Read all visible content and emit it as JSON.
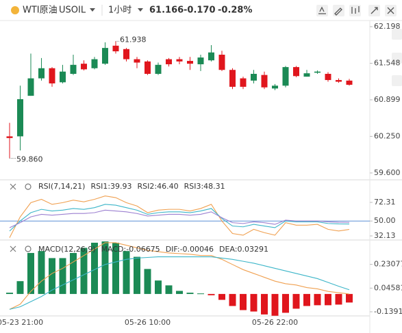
{
  "header": {
    "symbol": "WTI原油",
    "code": "USOIL",
    "interval": "1小时",
    "price": "61.166",
    "change": "-0.170",
    "change_pct": "-0.28%"
  },
  "chart_data": [
    {
      "type": "candlestick",
      "categories": [
        null,
        "05-23 21:00",
        null,
        null,
        null,
        null,
        null,
        null,
        null,
        null,
        null,
        null,
        null,
        "05-26 10:00",
        null,
        null,
        null,
        null,
        null,
        null,
        null,
        null,
        null,
        null,
        null,
        "05-26 22:00",
        null,
        null,
        null,
        null,
        null,
        null,
        null
      ],
      "open": [
        60.25,
        60.25,
        60.97,
        61.28,
        61.46,
        61.21,
        61.36,
        61.54,
        61.46,
        61.54,
        61.86,
        61.8,
        61.62,
        61.58,
        61.36,
        61.62,
        61.62,
        61.59,
        61.53,
        61.6,
        61.7,
        61.43,
        61.28,
        61.24,
        61.34,
        61.1,
        61.15,
        61.48,
        61.31,
        61.38,
        61.36,
        61.25,
        61.24
      ],
      "high": [
        60.49,
        61.15,
        61.72,
        61.64,
        61.48,
        61.52,
        61.7,
        61.6,
        61.66,
        61.92,
        61.938,
        61.82,
        61.66,
        61.6,
        61.56,
        61.64,
        61.66,
        61.66,
        61.7,
        61.87,
        61.77,
        61.46,
        61.31,
        61.43,
        61.4,
        61.18,
        61.5,
        61.5,
        61.43,
        61.42,
        61.39,
        61.28,
        61.27
      ],
      "low": [
        59.86,
        60.0,
        60.97,
        61.24,
        61.13,
        61.19,
        61.34,
        61.42,
        61.44,
        61.52,
        61.72,
        61.58,
        61.46,
        61.34,
        61.34,
        61.49,
        61.53,
        61.43,
        61.41,
        61.58,
        61.41,
        61.09,
        61.09,
        61.19,
        61.09,
        61.07,
        61.12,
        61.3,
        61.31,
        61.36,
        61.22,
        61.2,
        61.15
      ],
      "close": [
        60.22,
        60.91,
        61.28,
        61.46,
        61.19,
        61.4,
        61.52,
        61.44,
        61.62,
        61.82,
        61.76,
        61.62,
        61.56,
        61.36,
        61.52,
        61.53,
        61.58,
        61.54,
        61.65,
        61.74,
        61.43,
        61.13,
        61.13,
        61.36,
        61.12,
        61.15,
        61.48,
        61.32,
        61.37,
        61.4,
        61.25,
        61.22,
        61.166
      ],
      "up_color": "#1b8a55",
      "down_color": "#e0161d",
      "high_label": "61.938",
      "low_label": "59.860",
      "ylim": [
        59.49,
        62.307
      ],
      "yticks": [
        62.198,
        61.548,
        60.899,
        {
          "value": 60.25,
          "label": "60.250"
        },
        {
          "value": 59.6,
          "label": "59.600"
        }
      ]
    },
    {
      "type": "line",
      "title": "RSI(7,14,21)",
      "series": [
        {
          "name": "RSI1:39.93",
          "color": "#f0a050",
          "values": [
            30,
            55,
            72,
            76,
            70,
            72,
            75,
            73,
            76,
            80,
            78,
            72,
            68,
            60,
            63,
            64,
            64,
            62,
            65,
            70,
            50,
            35,
            33,
            40,
            36,
            33,
            48,
            45,
            45,
            46,
            40,
            38,
            39.93
          ]
        },
        {
          "name": "RSI2:46.40",
          "color": "#3bb5c8",
          "values": [
            38,
            50,
            60,
            64,
            62,
            63,
            65,
            64,
            66,
            70,
            69,
            66,
            63,
            58,
            60,
            61,
            61,
            60,
            62,
            65,
            53,
            44,
            43,
            46,
            44,
            42,
            50,
            49,
            49,
            49,
            47,
            46.5,
            46.4
          ]
        },
        {
          "name": "RSI3:48.31",
          "color": "#9b7fd0",
          "values": [
            42,
            48,
            55,
            58,
            57,
            58,
            59,
            59,
            60,
            63,
            62,
            61,
            59,
            56,
            57,
            58,
            58,
            57,
            58,
            61,
            54,
            48,
            47,
            49,
            48,
            46,
            51,
            50,
            50,
            50,
            49,
            48.5,
            48.31
          ]
        }
      ],
      "reference_line": {
        "value": 50,
        "color": "#5b8fd6"
      },
      "ylim": [
        28.03,
        97.73
      ],
      "yticks": [
        72.31,
        {
          "value": 50,
          "label": "50.00"
        },
        32.13
      ]
    },
    {
      "type": "macd",
      "title": "MACD(12,26,9)",
      "histogram_name": "MACD:-0.06675",
      "histogram": [
        0.01,
        0.1,
        0.32,
        0.335,
        0.28,
        0.28,
        0.32,
        0.36,
        0.4,
        0.41,
        0.4,
        0.335,
        0.29,
        0.195,
        0.105,
        0.067,
        0.024,
        0.01,
        0.004,
        -0.01,
        -0.046,
        -0.094,
        -0.126,
        -0.137,
        -0.16,
        -0.17,
        -0.147,
        -0.115,
        -0.094,
        -0.088,
        -0.088,
        -0.083,
        -0.06675
      ],
      "positive_color": "#1b8a55",
      "negative_color": "#e0161d",
      "series": [
        {
          "name": "DIF:-0.00046",
          "color": "#f0a050",
          "values": [
            -0.12,
            -0.08,
            0.02,
            0.1,
            0.16,
            0.2,
            0.25,
            0.3,
            0.35,
            0.4,
            0.4,
            0.38,
            0.36,
            0.34,
            0.33,
            0.32,
            0.315,
            0.31,
            0.3,
            0.3,
            0.27,
            0.23,
            0.19,
            0.16,
            0.13,
            0.1,
            0.08,
            0.07,
            0.05,
            0.04,
            0.02,
            0.01,
            -0.00046
          ]
        },
        {
          "name": "DEA:0.03291",
          "color": "#3bb5c8",
          "values": [
            -0.12,
            -0.1,
            -0.06,
            -0.02,
            0.03,
            0.07,
            0.11,
            0.15,
            0.19,
            0.23,
            0.25,
            0.27,
            0.28,
            0.285,
            0.29,
            0.29,
            0.29,
            0.29,
            0.29,
            0.29,
            0.28,
            0.27,
            0.255,
            0.24,
            0.22,
            0.2,
            0.18,
            0.16,
            0.14,
            0.12,
            0.09,
            0.06,
            0.03291
          ]
        }
      ],
      "ylim": [
        -0.1713,
        0.4158
      ],
      "yticks": [
        0.23077,
        0.04581,
        -0.13915
      ]
    }
  ]
}
